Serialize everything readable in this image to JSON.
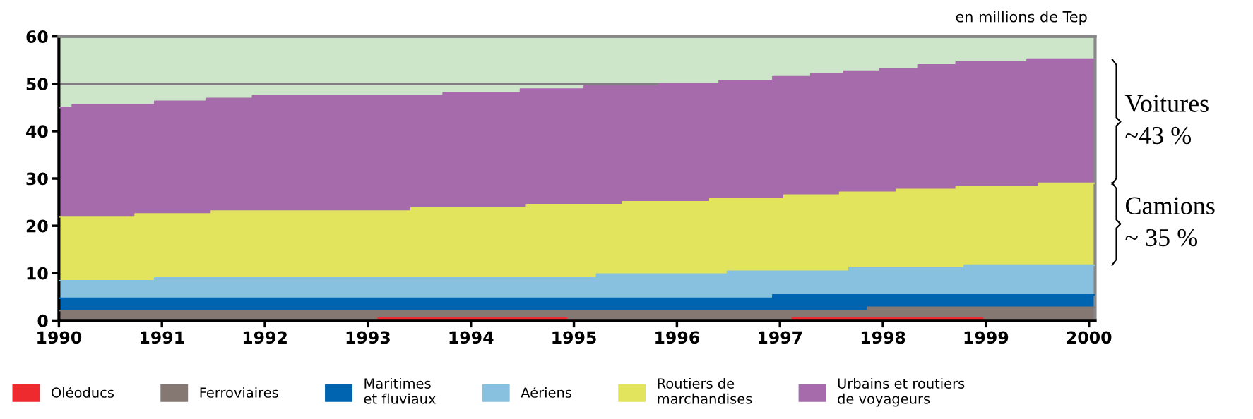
{
  "chart_data": {
    "type": "area",
    "stacked": true,
    "x": [
      1990.0,
      1990.13,
      1990.13,
      1990.74,
      1990.74,
      1990.93,
      1990.93,
      1991.43,
      1991.43,
      1991.48,
      1991.48,
      1991.88,
      1991.88,
      1993.1,
      1993.1,
      1993.42,
      1993.42,
      1993.73,
      1993.73,
      1994.48,
      1994.48,
      1994.54,
      1994.54,
      1994.93,
      1994.93,
      1995.1,
      1995.1,
      1995.22,
      1995.22,
      1995.47,
      1995.47,
      1995.82,
      1995.82,
      1996.32,
      1996.32,
      1996.41,
      1996.41,
      1996.49,
      1996.49,
      1996.93,
      1996.93,
      1997.04,
      1997.04,
      1997.12,
      1997.12,
      1997.3,
      1997.3,
      1997.58,
      1997.58,
      1997.62,
      1997.62,
      1997.67,
      1997.67,
      1997.85,
      1997.85,
      1997.97,
      1997.97,
      1998.13,
      1998.13,
      1998.34,
      1998.34,
      1998.71,
      1998.71,
      1998.79,
      1998.79,
      1998.97,
      1998.97,
      1999.4,
      1999.4,
      1999.51,
      1999.51,
      2000.06
    ],
    "series": [
      {
        "name": "Oléoducs",
        "color": "#ee2a2e",
        "values": [
          null,
          null,
          null,
          null,
          null,
          null,
          null,
          null,
          null,
          null,
          null,
          null,
          null,
          null,
          0.5,
          0.5,
          0.5,
          0.5,
          0.5,
          0.5,
          0.5,
          0.5,
          0.5,
          0.5,
          null,
          null,
          null,
          null,
          null,
          null,
          null,
          null,
          null,
          null,
          null,
          null,
          null,
          null,
          null,
          null,
          null,
          null,
          null,
          null,
          0.5,
          0.5,
          0.5,
          0.5,
          0.5,
          0.5,
          0.5,
          0.5,
          0.5,
          0.5,
          0.5,
          0.5,
          0.5,
          0.5,
          0.5,
          0.5,
          0.5,
          0.5,
          0.5,
          0.5,
          0.5,
          0.5,
          null,
          null,
          null,
          null,
          null,
          null
        ]
      },
      {
        "name": "Ferroviaires",
        "color": "#857873",
        "values": [
          2.1,
          2.1,
          2.1,
          2.1,
          2.1,
          2.1,
          2.1,
          2.1,
          2.1,
          2.1,
          2.1,
          2.1,
          2.1,
          2.1,
          1.6,
          1.6,
          1.6,
          1.6,
          1.6,
          1.6,
          1.6,
          1.6,
          1.6,
          1.6,
          2.1,
          2.1,
          2.1,
          2.1,
          2.1,
          2.1,
          2.1,
          2.1,
          2.1,
          2.1,
          2.1,
          2.1,
          2.1,
          2.1,
          2.1,
          2.1,
          2.1,
          2.1,
          2.1,
          2.1,
          1.6,
          1.6,
          1.6,
          1.6,
          1.6,
          1.6,
          1.6,
          1.6,
          1.6,
          1.6,
          2.3,
          2.3,
          2.3,
          2.3,
          2.3,
          2.3,
          2.3,
          2.3,
          2.3,
          2.3,
          2.3,
          2.3,
          2.8,
          2.8,
          2.8,
          2.8,
          2.8,
          2.8
        ]
      },
      {
        "name": "Maritimes\net fluviaux",
        "color": "#0064b0",
        "values": [
          2.6,
          2.6,
          2.6,
          2.6,
          2.6,
          2.6,
          2.6,
          2.6,
          2.6,
          2.6,
          2.6,
          2.6,
          2.6,
          2.6,
          2.6,
          2.6,
          2.6,
          2.6,
          2.6,
          2.6,
          2.6,
          2.6,
          2.6,
          2.6,
          2.6,
          2.6,
          2.6,
          2.6,
          2.6,
          2.6,
          2.6,
          2.6,
          2.6,
          2.6,
          2.6,
          2.6,
          2.6,
          2.6,
          2.6,
          2.6,
          3.3,
          3.3,
          3.3,
          3.3,
          3.3,
          3.3,
          3.3,
          3.3,
          3.3,
          3.3,
          3.3,
          3.3,
          3.3,
          3.3,
          2.6,
          2.6,
          2.6,
          2.6,
          2.6,
          2.6,
          2.6,
          2.6,
          2.6,
          2.6,
          2.6,
          2.6,
          2.6,
          2.6,
          2.6,
          2.6,
          2.6,
          2.6
        ]
      },
      {
        "name": "Aériens",
        "color": "#88c1df",
        "values": [
          3.7,
          3.7,
          3.7,
          3.7,
          3.7,
          3.7,
          4.3,
          4.3,
          4.3,
          4.3,
          4.3,
          4.3,
          4.3,
          4.3,
          4.3,
          4.3,
          4.3,
          4.3,
          4.3,
          4.3,
          4.3,
          4.3,
          4.3,
          4.3,
          4.3,
          4.3,
          4.3,
          4.3,
          5.1,
          5.1,
          5.1,
          5.1,
          5.1,
          5.1,
          5.1,
          5.1,
          5.1,
          5.1,
          5.7,
          5.7,
          5.0,
          5.0,
          5.0,
          5.0,
          5.0,
          5.0,
          5.0,
          5.0,
          5.0,
          5.0,
          5.0,
          5.0,
          5.7,
          5.7,
          5.7,
          5.7,
          5.7,
          5.7,
          5.7,
          5.7,
          5.7,
          5.7,
          5.7,
          5.7,
          6.3,
          6.3,
          6.3,
          6.3,
          6.3,
          6.3,
          6.3,
          6.3
        ]
      },
      {
        "name": "Routiers de\nmarchandises",
        "color": "#e1e45c",
        "values": [
          13.5,
          13.5,
          13.5,
          13.5,
          14.1,
          14.1,
          13.5,
          13.5,
          13.5,
          13.5,
          14.1,
          14.1,
          14.1,
          14.1,
          14.1,
          14.1,
          14.9,
          14.9,
          14.9,
          14.9,
          14.9,
          14.9,
          15.5,
          15.5,
          15.5,
          15.5,
          15.5,
          15.5,
          14.7,
          14.7,
          15.3,
          15.3,
          15.3,
          15.3,
          15.9,
          15.9,
          15.9,
          15.9,
          15.3,
          15.3,
          15.3,
          15.3,
          16.1,
          16.1,
          16.1,
          16.1,
          16.1,
          16.1,
          16.7,
          16.7,
          16.7,
          16.7,
          16.0,
          16.0,
          16.0,
          16.0,
          16.0,
          16.0,
          16.6,
          16.6,
          16.6,
          16.6,
          17.2,
          17.2,
          16.6,
          16.6,
          16.6,
          16.6,
          16.6,
          16.6,
          17.3,
          17.3
        ]
      },
      {
        "name": "Urbains et routiers\nde voyageurs",
        "color": "#a66baa",
        "values": [
          23.1,
          23.1,
          23.7,
          23.7,
          23.1,
          23.1,
          23.8,
          23.8,
          24.4,
          24.4,
          23.8,
          23.8,
          24.4,
          24.4,
          24.4,
          24.4,
          23.6,
          23.6,
          24.2,
          24.2,
          25.0,
          25.0,
          24.4,
          24.4,
          24.4,
          24.4,
          25.1,
          25.1,
          25.1,
          25.1,
          24.5,
          24.5,
          24.9,
          24.9,
          24.3,
          24.3,
          25.0,
          25.0,
          25.0,
          25.0,
          25.8,
          25.8,
          25.0,
          25.0,
          25.0,
          25.0,
          25.6,
          25.6,
          25.0,
          25.0,
          25.6,
          25.6,
          25.6,
          25.6,
          25.6,
          25.6,
          26.1,
          26.1,
          25.5,
          25.5,
          26.3,
          26.3,
          26.3,
          26.3,
          26.3,
          26.3,
          26.3,
          26.3,
          26.9,
          26.9,
          26.2,
          26.2
        ]
      }
    ],
    "xlim": [
      1990,
      2000.06
    ],
    "xticks": [
      1990,
      1991,
      1992,
      1993,
      1994,
      1995,
      1996,
      1997,
      1998,
      1999,
      2000
    ],
    "ylim": [
      0,
      60
    ],
    "yticks": [
      0,
      10,
      20,
      30,
      40,
      50,
      60
    ],
    "grid": "y",
    "legend": "bottom",
    "annotations": [
      "en millions de Tep",
      "Voitures\n~43 %",
      "Camions\n~ 35 %"
    ]
  }
}
